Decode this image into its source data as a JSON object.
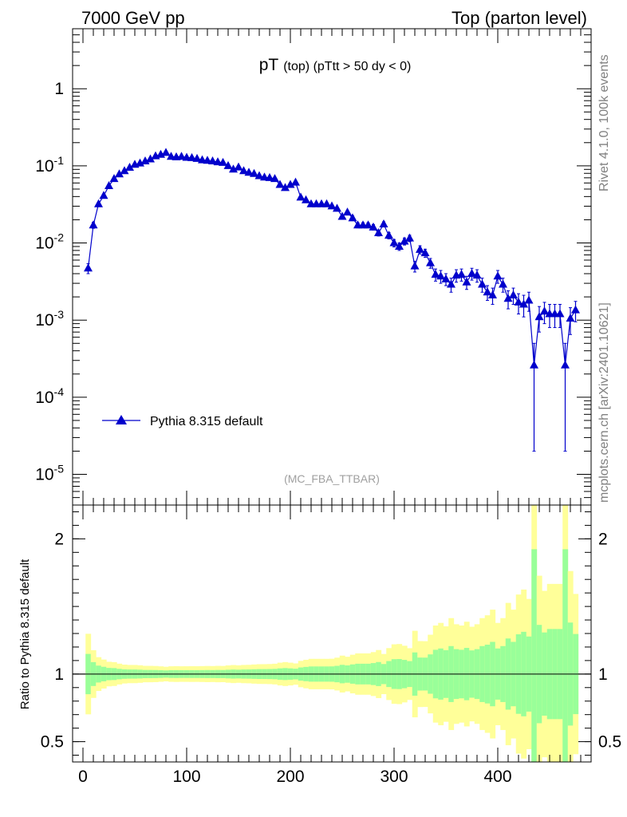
{
  "header": {
    "left": "7000 GeV pp",
    "right": "Top (parton level)"
  },
  "side_labels": {
    "rivet": "Rivet 4.1.0,  100k events",
    "mcplots": "mcplots.cern.ch [arXiv:2401.10621]"
  },
  "chart_data": [
    {
      "type": "line",
      "title": "pT (top) (pTtt > 50 dy < 0)",
      "title_main": "pT",
      "title_sub": "(top) (pTtt > 50 dy < 0)",
      "yscale": "log",
      "xlim": [
        -10,
        490
      ],
      "ylim": [
        4e-06,
        6
      ],
      "annotation": "(MC_FBA_TTBAR)",
      "legend_position": "lower-left",
      "y_tick_labels": [
        "10^-5",
        "10^-4",
        "10^-3",
        "10^-2",
        "10^-1",
        "1"
      ],
      "series": [
        {
          "name": "Pythia 8.315 default",
          "color": "#0000cc",
          "marker": "triangle-up",
          "x": [
            5,
            10,
            15,
            20,
            25,
            30,
            35,
            40,
            45,
            50,
            55,
            60,
            65,
            70,
            75,
            80,
            85,
            90,
            95,
            100,
            105,
            110,
            115,
            120,
            125,
            130,
            135,
            140,
            145,
            150,
            155,
            160,
            165,
            170,
            175,
            180,
            185,
            190,
            195,
            200,
            205,
            210,
            215,
            220,
            225,
            230,
            235,
            240,
            245,
            250,
            255,
            260,
            265,
            270,
            275,
            280,
            285,
            290,
            295,
            300,
            305,
            310,
            315,
            320,
            325,
            330,
            335,
            340,
            345,
            350,
            355,
            360,
            365,
            370,
            375,
            380,
            385,
            390,
            395,
            400,
            405,
            410,
            415,
            420,
            425,
            430,
            435,
            440,
            445,
            450,
            455,
            460,
            465,
            470,
            475
          ],
          "y": [
            0.0047,
            0.017,
            0.032,
            0.041,
            0.055,
            0.068,
            0.078,
            0.086,
            0.095,
            0.104,
            0.108,
            0.115,
            0.122,
            0.134,
            0.14,
            0.148,
            0.132,
            0.13,
            0.132,
            0.128,
            0.127,
            0.124,
            0.119,
            0.117,
            0.115,
            0.112,
            0.11,
            0.1,
            0.09,
            0.096,
            0.086,
            0.082,
            0.079,
            0.074,
            0.071,
            0.07,
            0.068,
            0.057,
            0.052,
            0.057,
            0.061,
            0.039,
            0.036,
            0.032,
            0.032,
            0.032,
            0.032,
            0.03,
            0.028,
            0.022,
            0.025,
            0.021,
            0.017,
            0.017,
            0.017,
            0.016,
            0.0135,
            0.0175,
            0.0125,
            0.01,
            0.009,
            0.0105,
            0.0115,
            0.005,
            0.0082,
            0.0074,
            0.0055,
            0.0039,
            0.0037,
            0.0034,
            0.0029,
            0.0038,
            0.0039,
            0.0031,
            0.004,
            0.0038,
            0.0029,
            0.0023,
            0.0021,
            0.0037,
            0.0029,
            0.0019,
            0.0021,
            0.0017,
            0.0016,
            0.0018,
            0.00026,
            0.0011,
            0.0013,
            0.0012,
            0.0012,
            0.0012,
            0.00026,
            0.00105,
            0.00135
          ],
          "err": [
            0.0007,
            0.0015,
            0.002,
            0.0022,
            0.0025,
            0.003,
            0.003,
            0.003,
            0.0032,
            0.0035,
            0.0035,
            0.0035,
            0.0037,
            0.004,
            0.004,
            0.004,
            0.0038,
            0.0038,
            0.0038,
            0.0037,
            0.0037,
            0.0036,
            0.0035,
            0.0035,
            0.0034,
            0.0034,
            0.0033,
            0.0032,
            0.003,
            0.0031,
            0.0029,
            0.0028,
            0.0028,
            0.0027,
            0.0026,
            0.0026,
            0.0026,
            0.0024,
            0.0023,
            0.0024,
            0.0024,
            0.0019,
            0.0019,
            0.0018,
            0.0018,
            0.0018,
            0.0018,
            0.0017,
            0.0017,
            0.0015,
            0.0016,
            0.0015,
            0.0013,
            0.0013,
            0.0013,
            0.0013,
            0.0012,
            0.0013,
            0.0012,
            0.0011,
            0.001,
            0.0011,
            0.0011,
            0.0008,
            0.001,
            0.0009,
            0.0008,
            0.0007,
            0.0007,
            0.0006,
            0.0006,
            0.0007,
            0.0007,
            0.0006,
            0.0007,
            0.0007,
            0.0006,
            0.0005,
            0.0005,
            0.0007,
            0.0006,
            0.0005,
            0.0005,
            0.0005,
            0.0005,
            0.0005,
            0.00024,
            0.0004,
            0.0004,
            0.0004,
            0.0004,
            0.0004,
            0.00024,
            0.0004,
            0.0004
          ]
        }
      ]
    },
    {
      "type": "area",
      "ylabel": "Ratio to Pythia 8.315 default",
      "xlim": [
        -10,
        490
      ],
      "ylim": [
        0.35,
        2.25
      ],
      "x_ticks": [
        0,
        100,
        200,
        300,
        400
      ],
      "y_ticks": [
        0.5,
        1,
        2
      ],
      "reference_line": 1,
      "bands": [
        {
          "name": "outer",
          "color": "#ffff99"
        },
        {
          "name": "inner",
          "color": "#99ff99"
        }
      ]
    }
  ]
}
